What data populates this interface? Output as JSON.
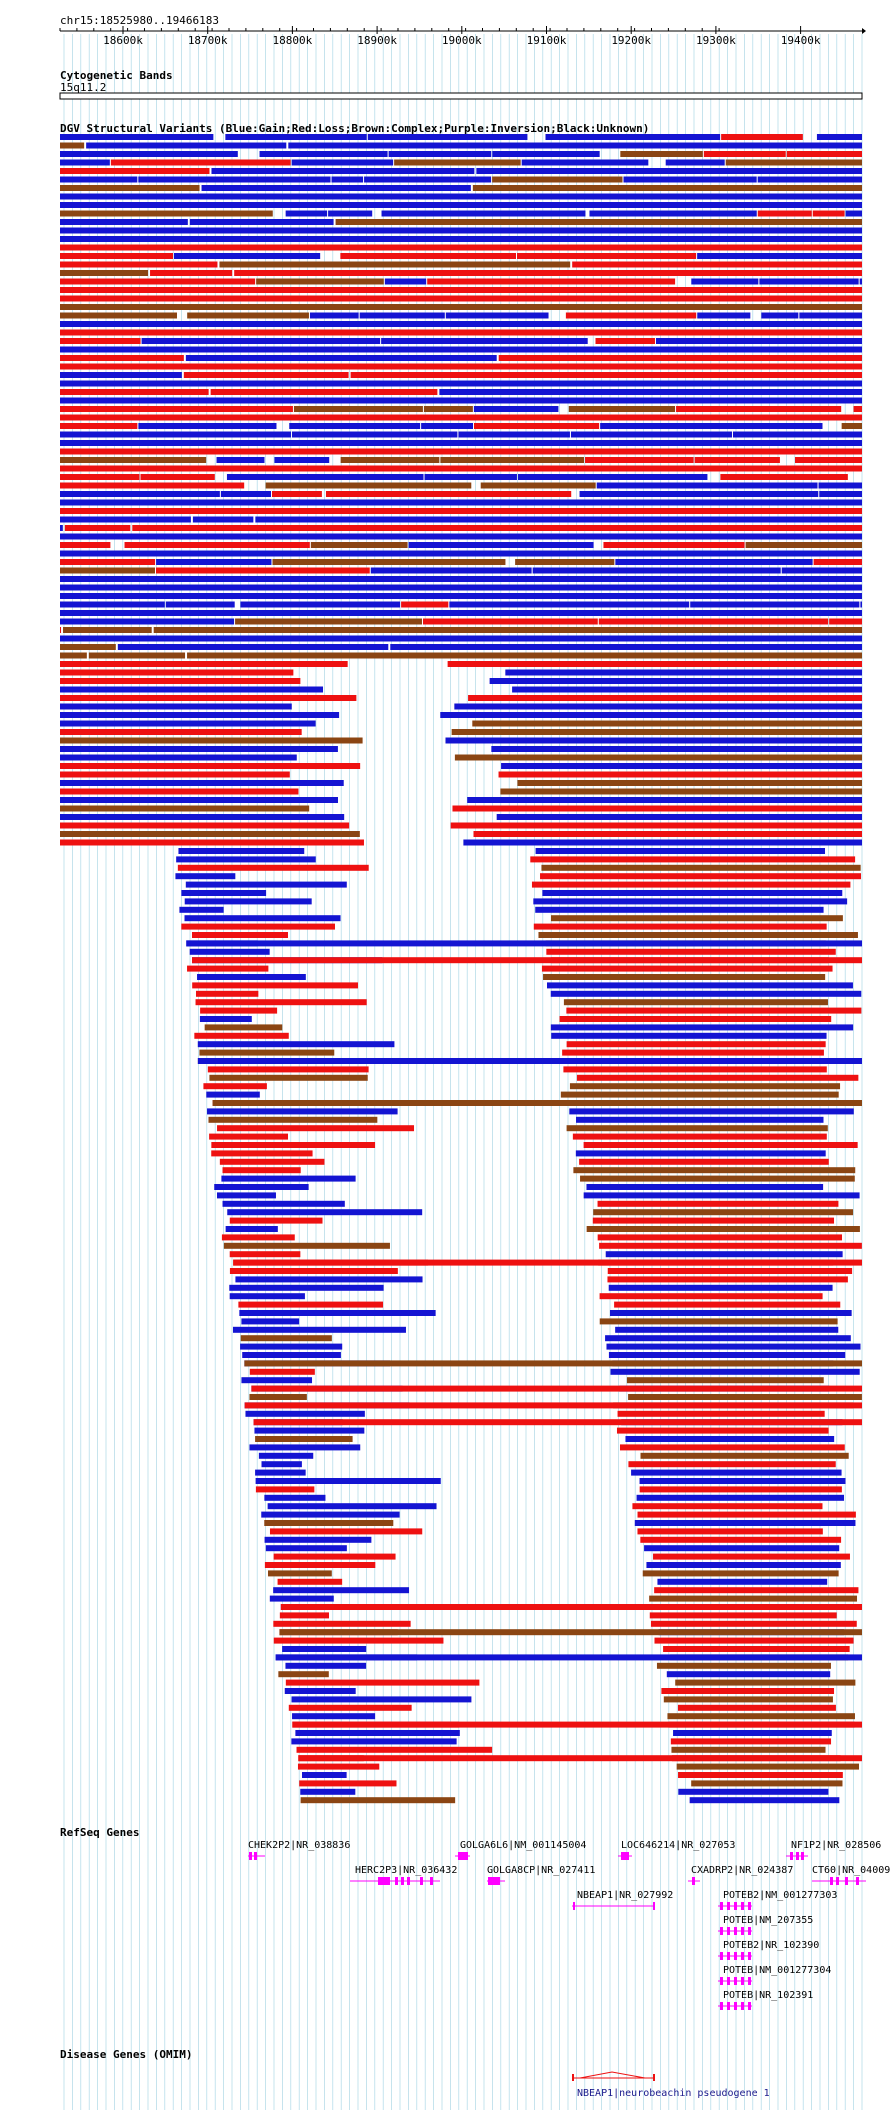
{
  "ruler": {
    "region": "chr15:18525980..19466183",
    "ticks": [
      "18600k",
      "18700k",
      "18800k",
      "18900k",
      "19000k",
      "19100k",
      "19200k",
      "19300k",
      "19400k"
    ]
  },
  "tracks": {
    "cytoband": {
      "title": "Cytogenetic Bands",
      "band": "15q11.2"
    },
    "dgv": {
      "title": "DGV Structural Variants (Blue:Gain;Red:Loss;Brown:Complex;Purple:Inversion;Black:Unknown)"
    },
    "refseq": {
      "title": "RefSeq Genes",
      "genes": [
        "CHEK2P2|NR_038836",
        "GOLGA6L6|NM_001145004",
        "LOC646214|NR_027053",
        "NF1P2|NR_028506",
        "HERC2P3|NR_036432",
        "GOLGA8CP|NR_027411",
        "CXADRP2|NR_024387",
        "CT60|NR_04009",
        "NBEAP1|NR_027992",
        "POTEB2|NM_001277303",
        "POTEB|NM_207355",
        "POTEB2|NR_102390",
        "POTEB|NM_001277304",
        "POTEB|NR_102391"
      ]
    },
    "omim": {
      "title": "Disease Genes (OMIM)",
      "feature": "NBEAP1|neurobeachin pseudogene 1"
    }
  },
  "colors": {
    "gain": "#1414d2",
    "loss": "#ee1111",
    "complex": "#8b4513",
    "grid": "#add8e6",
    "gene": "#ff00ff"
  }
}
